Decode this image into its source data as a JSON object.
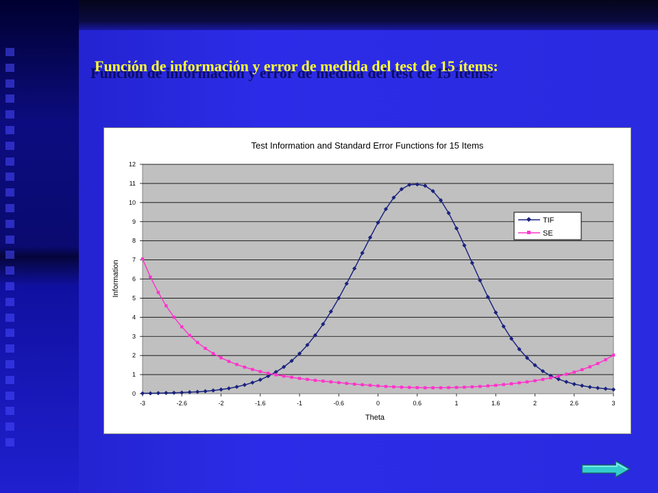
{
  "slide": {
    "title": "Función de información y error de medida del test de 15 ítems:",
    "next_icon": "arrow-right-icon",
    "accent_color": "#ffff33"
  },
  "chart_data": {
    "type": "line",
    "title": "Test Information and Standard Error Functions for 15 Items",
    "xlabel": "Theta",
    "ylabel": "Information",
    "xlim": [
      -3,
      3
    ],
    "ylim": [
      0,
      12
    ],
    "x_ticks": [
      "-3",
      "-2.6",
      "-2",
      "-1.6",
      "-1",
      "-0.6",
      "0",
      "0.6",
      "1",
      "1.6",
      "2",
      "2.6",
      "3"
    ],
    "y_ticks": [
      "0",
      "1",
      "2",
      "3",
      "4",
      "5",
      "6",
      "7",
      "8",
      "9",
      "10",
      "11",
      "12"
    ],
    "grid": true,
    "legend_position": "right",
    "plot_background": "#c0c0c0",
    "x": [
      -3.0,
      -2.9,
      -2.8,
      -2.7,
      -2.6,
      -2.5,
      -2.4,
      -2.3,
      -2.2,
      -2.1,
      -2.0,
      -1.9,
      -1.8,
      -1.7,
      -1.6,
      -1.5,
      -1.4,
      -1.3,
      -1.2,
      -1.1,
      -1.0,
      -0.9,
      -0.8,
      -0.7,
      -0.6,
      -0.5,
      -0.4,
      -0.3,
      -0.2,
      -0.1,
      0.0,
      0.1,
      0.2,
      0.3,
      0.4,
      0.5,
      0.6,
      0.7,
      0.8,
      0.9,
      1.0,
      1.1,
      1.2,
      1.3,
      1.4,
      1.5,
      1.6,
      1.7,
      1.8,
      1.9,
      2.0,
      2.1,
      2.2,
      2.3,
      2.4,
      2.5,
      2.6,
      2.7,
      2.8,
      2.9,
      3.0
    ],
    "series": [
      {
        "name": "TIF",
        "color": "#1a237e",
        "marker": "diamond",
        "values": [
          0.02,
          0.02,
          0.03,
          0.04,
          0.05,
          0.06,
          0.08,
          0.1,
          0.13,
          0.17,
          0.22,
          0.28,
          0.36,
          0.46,
          0.58,
          0.73,
          0.92,
          1.14,
          1.4,
          1.72,
          2.1,
          2.55,
          3.06,
          3.64,
          4.3,
          5.0,
          5.76,
          6.55,
          7.36,
          8.17,
          8.95,
          9.66,
          10.26,
          10.7,
          10.93,
          10.95,
          10.88,
          10.6,
          10.12,
          9.45,
          8.65,
          7.76,
          6.84,
          5.93,
          5.06,
          4.25,
          3.52,
          2.88,
          2.33,
          1.87,
          1.49,
          1.18,
          0.94,
          0.76,
          0.62,
          0.5,
          0.42,
          0.35,
          0.3,
          0.26,
          0.22
        ]
      },
      {
        "name": "SE",
        "color": "#ff33cc",
        "marker": "square",
        "values": [
          7.05,
          6.1,
          5.3,
          4.6,
          4.0,
          3.5,
          3.05,
          2.68,
          2.37,
          2.1,
          1.88,
          1.69,
          1.53,
          1.39,
          1.27,
          1.16,
          1.07,
          0.99,
          0.92,
          0.86,
          0.8,
          0.75,
          0.7,
          0.66,
          0.62,
          0.58,
          0.54,
          0.5,
          0.47,
          0.44,
          0.41,
          0.38,
          0.36,
          0.34,
          0.33,
          0.32,
          0.31,
          0.31,
          0.31,
          0.32,
          0.33,
          0.34,
          0.36,
          0.38,
          0.41,
          0.44,
          0.48,
          0.52,
          0.57,
          0.62,
          0.68,
          0.75,
          0.83,
          0.92,
          1.02,
          1.13,
          1.26,
          1.41,
          1.58,
          1.78,
          2.02
        ]
      }
    ]
  }
}
